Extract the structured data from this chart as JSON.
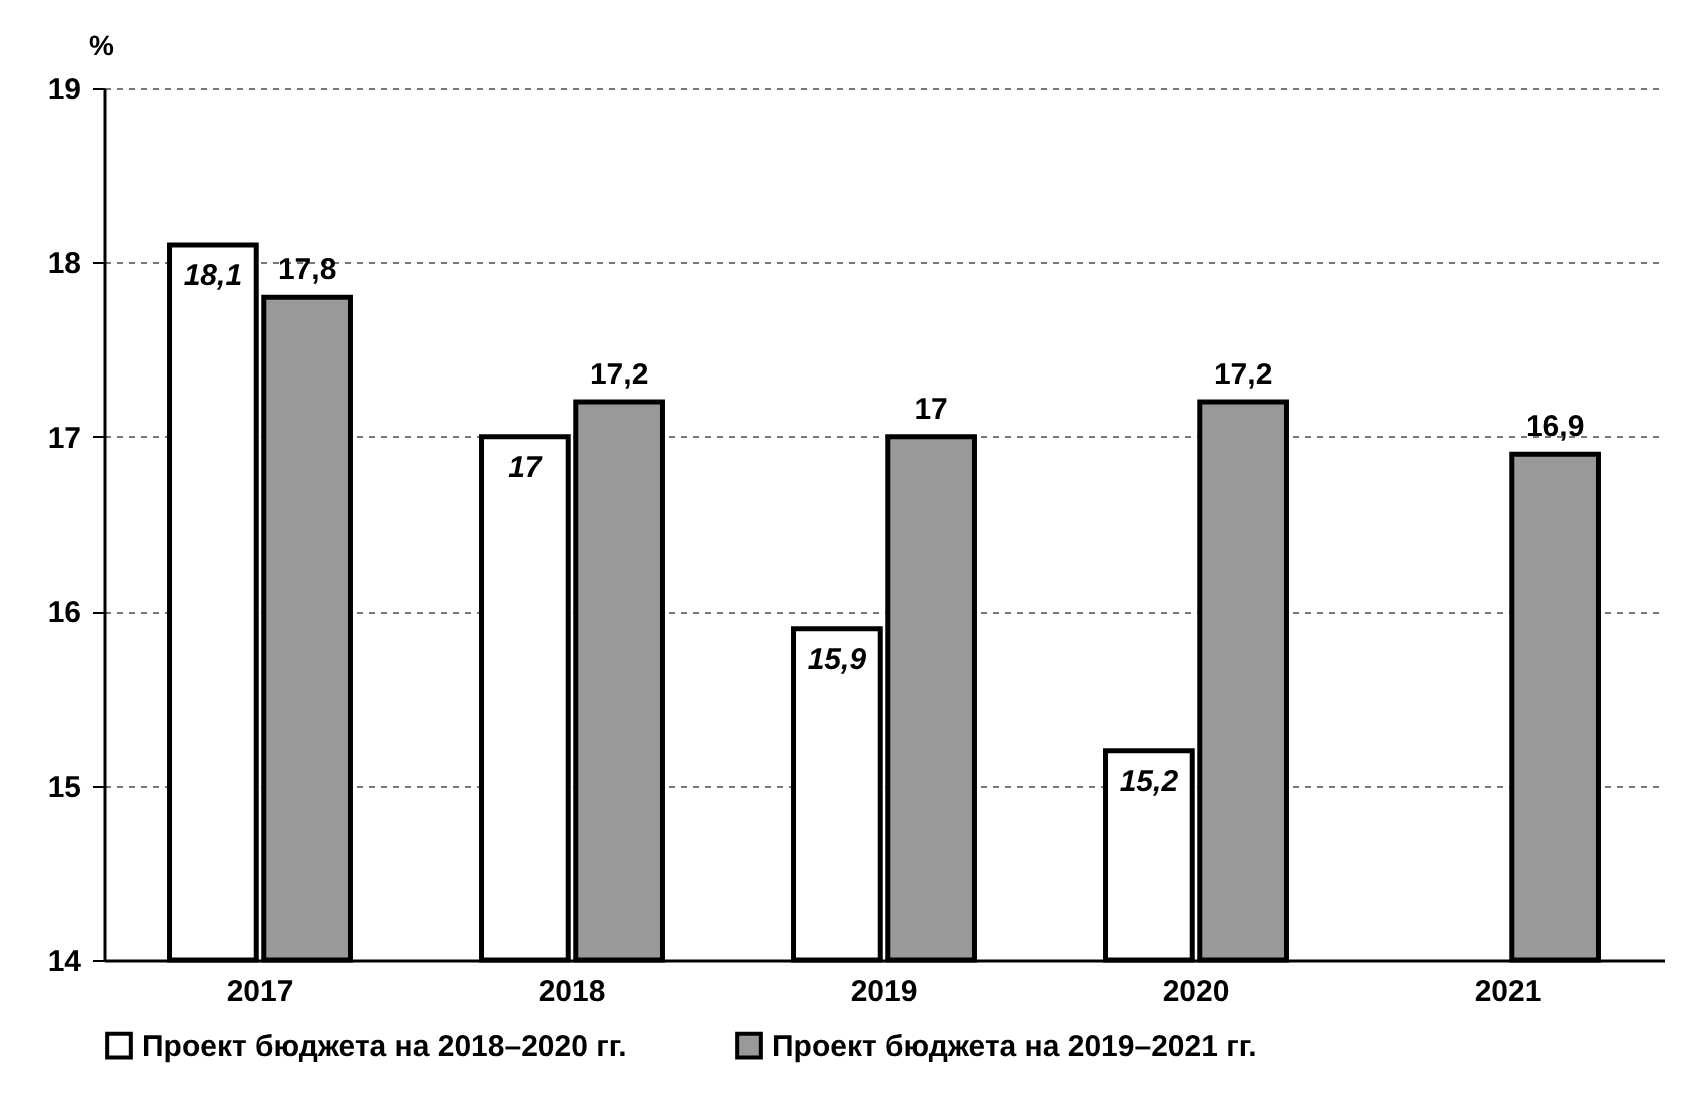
{
  "chart_data": {
    "type": "bar",
    "ylabel": "%",
    "categories": [
      "2017",
      "2018",
      "2019",
      "2020",
      "2021"
    ],
    "series": [
      {
        "name": "Проект бюджета на 2018–2020 гг.",
        "color": "#ffffff",
        "values": [
          18.1,
          17,
          15.9,
          15.2,
          null
        ],
        "value_labels": [
          "18,1",
          "17",
          "15,9",
          "15,2",
          null
        ]
      },
      {
        "name": "Проект бюджета на 2019–2021 гг.",
        "color": "#999999",
        "values": [
          17.8,
          17.2,
          17,
          17.2,
          16.9
        ],
        "value_labels": [
          "17,8",
          "17,2",
          "17",
          "17,2",
          "16,9"
        ]
      }
    ],
    "ylim": [
      14,
      19
    ],
    "yticks": [
      14,
      15,
      16,
      17,
      18,
      19
    ],
    "grid": "y",
    "legend": "bottom"
  }
}
